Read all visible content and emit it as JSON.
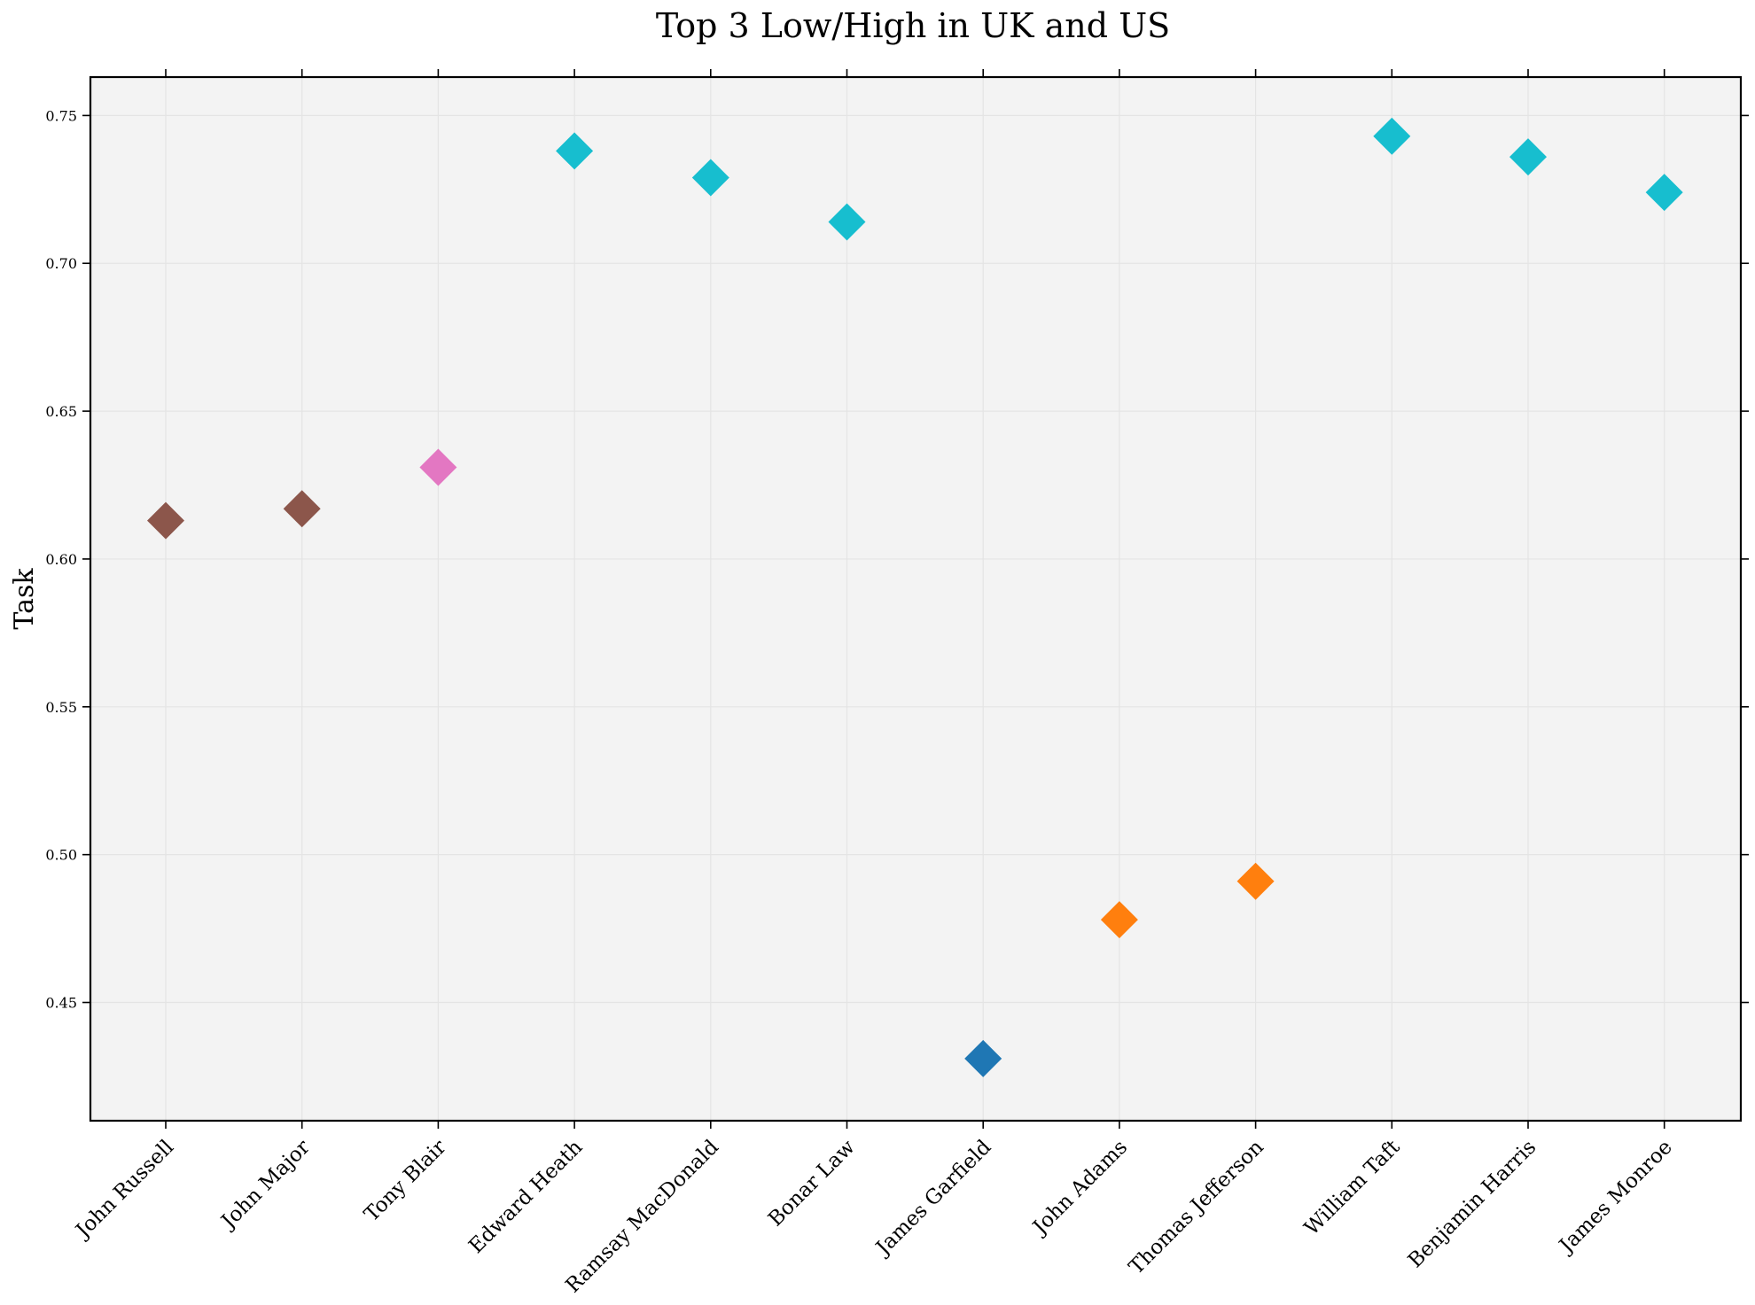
{
  "chart_data": {
    "type": "scatter",
    "title": "Top 3 Low/High in UK and US",
    "xlabel": "",
    "ylabel": "Task",
    "ylim": [
      0.41,
      0.763
    ],
    "yticks": [
      0.45,
      0.5,
      0.55,
      0.6,
      0.65,
      0.7,
      0.75
    ],
    "ytick_labels": [
      "0.45",
      "0.50",
      "0.55",
      "0.60",
      "0.65",
      "0.70",
      "0.75"
    ],
    "grid": true,
    "marker": "diamond",
    "points": [
      {
        "label": "John Russell",
        "value": 0.613,
        "color": "#8c564b"
      },
      {
        "label": "John Major",
        "value": 0.617,
        "color": "#8c564b"
      },
      {
        "label": "Tony Blair",
        "value": 0.631,
        "color": "#e377c2"
      },
      {
        "label": "Edward Heath",
        "value": 0.738,
        "color": "#17becf"
      },
      {
        "label": "Ramsay MacDonald",
        "value": 0.729,
        "color": "#17becf"
      },
      {
        "label": "Bonar Law",
        "value": 0.714,
        "color": "#17becf"
      },
      {
        "label": "James Garfield",
        "value": 0.431,
        "color": "#1f77b4"
      },
      {
        "label": "John Adams",
        "value": 0.478,
        "color": "#ff7f0e"
      },
      {
        "label": "Thomas Jefferson",
        "value": 0.491,
        "color": "#ff7f0e"
      },
      {
        "label": "William Taft",
        "value": 0.743,
        "color": "#17becf"
      },
      {
        "label": "Benjamin Harris",
        "value": 0.736,
        "color": "#17becf"
      },
      {
        "label": "James Monroe",
        "value": 0.724,
        "color": "#17becf"
      }
    ]
  }
}
